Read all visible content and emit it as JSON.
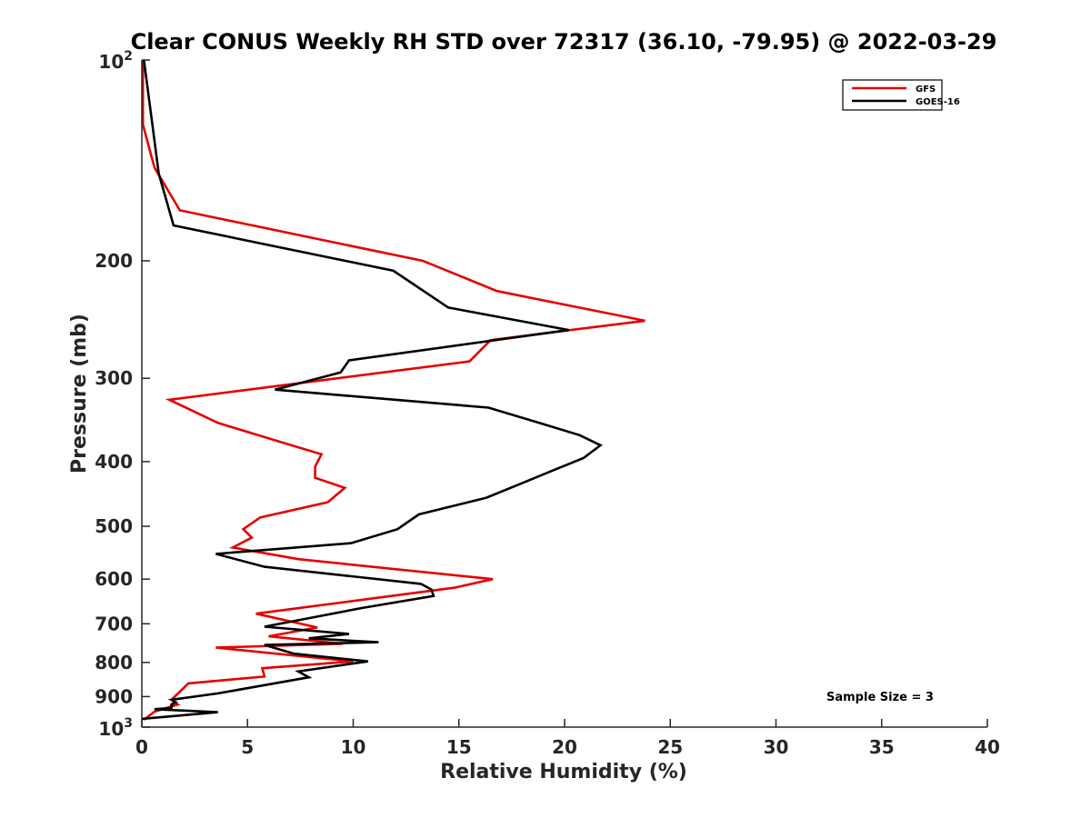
{
  "chart_data": {
    "type": "line",
    "title": "Clear CONUS Weekly RH STD over 72317 (36.10, -79.95) @ 2022-03-29",
    "xlabel": "Relative Humidity (%)",
    "ylabel": "Pressure (mb)",
    "xlim": [
      0,
      40
    ],
    "ylim": [
      100,
      1000
    ],
    "yscale": "log",
    "y_reversed": true,
    "grid": false,
    "legend_position": "top-right",
    "x_ticks": [
      0,
      5,
      10,
      15,
      20,
      25,
      30,
      35,
      40
    ],
    "x_tick_labels": [
      "0",
      "5",
      "10",
      "15",
      "20",
      "25",
      "30",
      "35",
      "40"
    ],
    "y_ticks": [
      200,
      300,
      400,
      500,
      600,
      700,
      800,
      900
    ],
    "y_tick_labels": [
      "200",
      "300",
      "400",
      "500",
      "600",
      "700",
      "800",
      "900"
    ],
    "y_tick_top": {
      "base": "10",
      "exp": "2"
    },
    "y_tick_bottom": {
      "base": "10",
      "exp": "3"
    },
    "annotation": "Sample Size = 3",
    "series": [
      {
        "name": "GFS",
        "color": "#e60000",
        "x": [
          0.05,
          0.05,
          0.6,
          1.8,
          13.3,
          16.8,
          23.8,
          16.5,
          15.5,
          1.3,
          3.6,
          6.7,
          8.5,
          8.2,
          8.2,
          9.6,
          8.8,
          5.6,
          4.8,
          5.2,
          4.3,
          7.4,
          16.6,
          14.8,
          5.4,
          8.3,
          6.0,
          9.5,
          3.5,
          10.0,
          5.7,
          5.8,
          2.2,
          1.4,
          1.7,
          0.6,
          0.1
        ],
        "y": [
          100,
          125,
          145,
          168,
          200,
          222,
          246,
          263,
          283,
          323,
          350,
          375,
          390,
          407,
          423,
          438,
          460,
          485,
          505,
          520,
          538,
          560,
          600,
          618,
          676,
          709,
          731,
          750,
          760,
          797,
          816,
          840,
          860,
          910,
          925,
          948,
          975
        ]
      },
      {
        "name": "GOES-16",
        "color": "#000000",
        "x": [
          0.1,
          0.5,
          0.8,
          1.5,
          11.9,
          14.5,
          20.2,
          9.8,
          9.4,
          6.3,
          16.4,
          18.8,
          20.7,
          21.7,
          20.9,
          19.4,
          17.9,
          16.3,
          13.1,
          12.1,
          9.9,
          3.5,
          5.8,
          10.1,
          13.2,
          13.7,
          13.8,
          10.4,
          5.8,
          9.8,
          7.9,
          11.2,
          5.8,
          7.2,
          10.7,
          7.4,
          7.9,
          3.6,
          1.4,
          1.6,
          1.4,
          1.4,
          0.6,
          3.6,
          0.0
        ],
        "y": [
          100,
          125,
          148,
          177,
          207,
          235,
          254,
          282,
          294,
          312,
          332,
          350,
          365,
          378,
          395,
          413,
          432,
          453,
          480,
          505,
          530,
          550,
          575,
          595,
          610,
          622,
          636,
          663,
          707,
          725,
          736,
          746,
          753,
          776,
          797,
          825,
          842,
          890,
          910,
          918,
          925,
          936,
          940,
          950,
          972
        ]
      }
    ]
  }
}
